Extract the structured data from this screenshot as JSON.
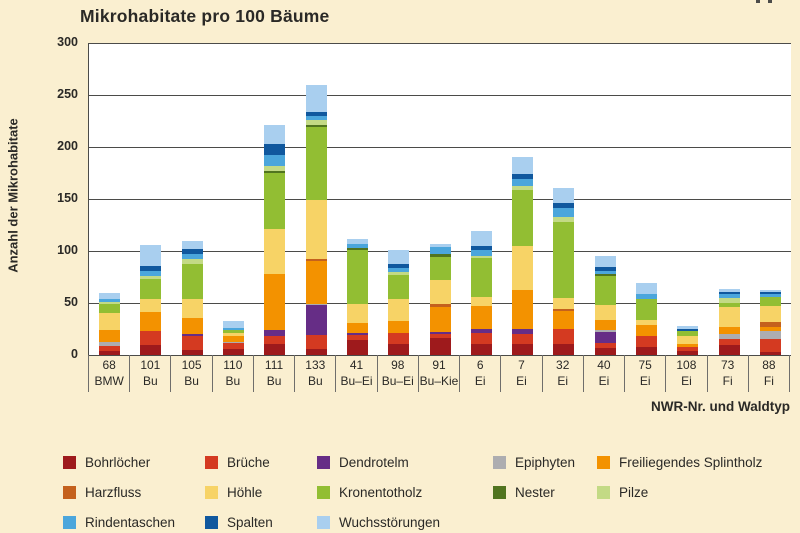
{
  "chart_data": {
    "type": "bar",
    "stacked": true,
    "title": "Mikrohabitate pro 100 Bäume",
    "ylabel": "Anzahl der Mikrohabitate",
    "xlabel": "NWR-Nr. und Waldtyp",
    "ylim": [
      0,
      300
    ],
    "yticks": [
      300,
      250,
      200,
      150,
      100,
      50,
      0
    ],
    "grid": true,
    "legend_position": "bottom",
    "categories": [
      {
        "nr": "68",
        "waldtyp": "BMW"
      },
      {
        "nr": "101",
        "waldtyp": "Bu"
      },
      {
        "nr": "105",
        "waldtyp": "Bu"
      },
      {
        "nr": "110",
        "waldtyp": "Bu"
      },
      {
        "nr": "111",
        "waldtyp": "Bu"
      },
      {
        "nr": "133",
        "waldtyp": "Bu"
      },
      {
        "nr": "41",
        "waldtyp": "Bu–Ei"
      },
      {
        "nr": "98",
        "waldtyp": "Bu–Ei"
      },
      {
        "nr": "91",
        "waldtyp": "Bu–Kie"
      },
      {
        "nr": "6",
        "waldtyp": "Ei"
      },
      {
        "nr": "7",
        "waldtyp": "Ei"
      },
      {
        "nr": "32",
        "waldtyp": "Ei"
      },
      {
        "nr": "40",
        "waldtyp": "Ei"
      },
      {
        "nr": "75",
        "waldtyp": "Ei"
      },
      {
        "nr": "108",
        "waldtyp": "Ei"
      },
      {
        "nr": "73",
        "waldtyp": "Fi"
      },
      {
        "nr": "88",
        "waldtyp": "Fi"
      }
    ],
    "series": [
      {
        "name": "Bohrlöcher",
        "color": "#9E1A1C",
        "values": [
          4,
          10,
          5,
          6,
          11,
          6,
          14,
          11,
          16,
          11,
          11,
          11,
          7,
          8,
          4,
          10,
          3
        ]
      },
      {
        "name": "Brüche",
        "color": "#D43A21",
        "values": [
          5,
          13,
          13,
          6,
          7,
          13,
          5,
          10,
          4,
          10,
          9,
          14,
          5,
          10,
          4,
          5,
          12
        ]
      },
      {
        "name": "Dendrotelm",
        "color": "#662D86",
        "values": [
          0,
          0,
          2,
          0,
          6,
          29,
          2,
          0,
          2,
          4,
          5,
          0,
          10,
          0,
          0,
          0,
          0
        ]
      },
      {
        "name": "Epiphyten",
        "color": "#ADADB0",
        "values": [
          4,
          0,
          0,
          1,
          0,
          1,
          0,
          0,
          0,
          0,
          0,
          0,
          2,
          0,
          0,
          5,
          8
        ]
      },
      {
        "name": "Freiliegendes Splintholz",
        "color": "#F39200",
        "values": [
          11,
          18,
          16,
          5,
          54,
          41,
          10,
          12,
          24,
          22,
          38,
          17,
          10,
          11,
          3,
          7,
          4
        ]
      },
      {
        "name": "Harzfluss",
        "color": "#C4611D",
        "values": [
          0,
          0,
          0,
          0,
          0,
          2,
          0,
          0,
          3,
          0,
          0,
          2,
          0,
          0,
          0,
          0,
          5
        ]
      },
      {
        "name": "Höhle",
        "color": "#F7D366",
        "values": [
          16,
          13,
          18,
          3,
          43,
          57,
          18,
          21,
          23,
          9,
          42,
          11,
          14,
          5,
          7,
          19,
          15
        ]
      },
      {
        "name": "Kronentotholz",
        "color": "#92BE33",
        "values": [
          9,
          19,
          34,
          3,
          54,
          70,
          52,
          23,
          22,
          37,
          54,
          73,
          28,
          20,
          5,
          4,
          9
        ]
      },
      {
        "name": "Nester",
        "color": "#51741F",
        "values": [
          0,
          0,
          0,
          0,
          2,
          2,
          2,
          0,
          3,
          0,
          0,
          0,
          2,
          0,
          0,
          0,
          0
        ]
      },
      {
        "name": "Pilze",
        "color": "#C3DA85",
        "values": [
          2,
          3,
          4,
          0,
          5,
          5,
          0,
          3,
          0,
          2,
          4,
          5,
          0,
          0,
          0,
          5,
          0
        ]
      },
      {
        "name": "Rindentaschen",
        "color": "#4BA6DC",
        "values": [
          3,
          5,
          5,
          2,
          10,
          4,
          4,
          4,
          7,
          6,
          6,
          8,
          3,
          5,
          0,
          4,
          3
        ]
      },
      {
        "name": "Spalten",
        "color": "#10589E",
        "values": [
          0,
          5,
          5,
          0,
          11,
          4,
          0,
          4,
          0,
          4,
          5,
          5,
          4,
          0,
          2,
          2,
          2
        ]
      },
      {
        "name": "Wuchsstörungen",
        "color": "#A9CFEF",
        "values": [
          6,
          20,
          8,
          7,
          18,
          26,
          5,
          13,
          3,
          14,
          16,
          15,
          10,
          10,
          3,
          3,
          2
        ]
      }
    ]
  },
  "colors": {
    "background": "#FAEFD0",
    "plot_background": "#FFFFFF",
    "gridline": "#4B4B49",
    "text": "#2A2926"
  }
}
